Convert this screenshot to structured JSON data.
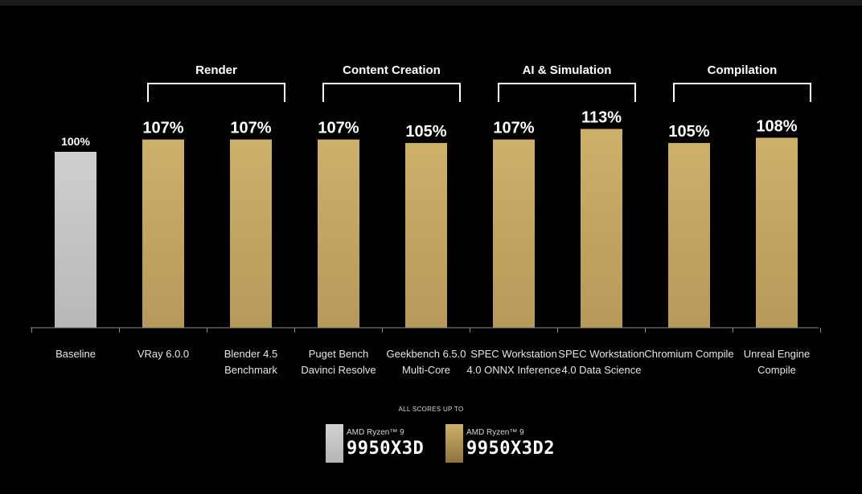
{
  "chart_data": {
    "type": "bar",
    "categories": [
      "Baseline",
      "VRay 6.0.0",
      "Blender 4.5\nBenchmark",
      "Puget Bench\nDavinci Resolve",
      "Geekbench 6.5.0\nMulti-Core",
      "SPEC Workstation\n4.0 ONNX Inference",
      "SPEC Workstation\n4.0 Data Science",
      "Chromium Compile",
      "Unreal Engine\nCompile"
    ],
    "values": [
      100,
      107,
      107,
      107,
      105,
      107,
      113,
      105,
      108
    ],
    "value_labels": [
      "100%",
      "107%",
      "107%",
      "107%",
      "105%",
      "107%",
      "113%",
      "105%",
      "108%"
    ],
    "series_index": [
      0,
      1,
      1,
      1,
      1,
      1,
      1,
      1,
      1
    ],
    "groups": [
      {
        "label": "Render",
        "start": 1,
        "end": 2
      },
      {
        "label": "Content Creation",
        "start": 3,
        "end": 4
      },
      {
        "label": "AI & Simulation",
        "start": 5,
        "end": 6
      },
      {
        "label": "Compilation",
        "start": 7,
        "end": 8
      }
    ],
    "legend": {
      "title": "ALL SCORES UP TO",
      "placement": "bottom-center",
      "items": [
        {
          "brand": "AMD Ryzen™ 9",
          "model": "9950X3D"
        },
        {
          "brand": "AMD Ryzen™ 9",
          "model": "9950X3D2"
        }
      ]
    },
    "colors": {
      "baseline": "#c2c2c2",
      "highlight": "#c2a45e",
      "axis": "#8a8a8a",
      "text": "#e6e6e6"
    },
    "ylim": [
      0,
      115
    ],
    "grid": false
  }
}
